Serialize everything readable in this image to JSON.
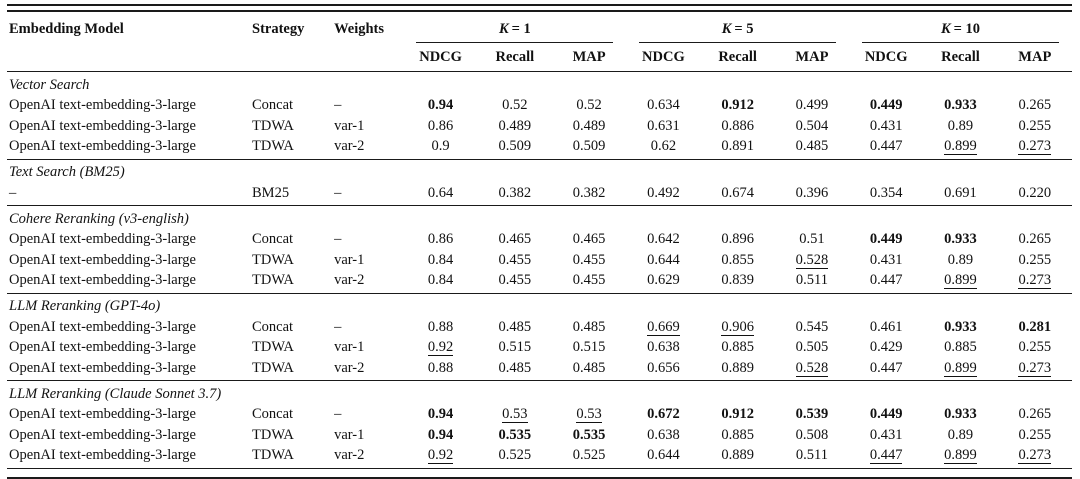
{
  "table": {
    "header": {
      "embedding_model": "Embedding Model",
      "strategy": "Strategy",
      "weights": "Weights",
      "k_groups": [
        {
          "var": "K",
          "rest": "= 1"
        },
        {
          "var": "K",
          "rest": "= 5"
        },
        {
          "var": "K",
          "rest": "= 10"
        }
      ],
      "metrics": [
        "NDCG",
        "Recall",
        "MAP"
      ]
    },
    "sections": [
      {
        "title": "Vector Search",
        "rows": [
          {
            "model": "OpenAI text-embedding-3-large",
            "strategy": "Concat",
            "weights": "–",
            "cells": [
              {
                "v": "0.94",
                "s": "b"
              },
              {
                "v": "0.52",
                "s": ""
              },
              {
                "v": "0.52",
                "s": ""
              },
              {
                "v": "0.634",
                "s": ""
              },
              {
                "v": "0.912",
                "s": "b"
              },
              {
                "v": "0.499",
                "s": ""
              },
              {
                "v": "0.449",
                "s": "b"
              },
              {
                "v": "0.933",
                "s": "b"
              },
              {
                "v": "0.265",
                "s": ""
              }
            ]
          },
          {
            "model": "OpenAI text-embedding-3-large",
            "strategy": "TDWA",
            "weights": "var-1",
            "cells": [
              {
                "v": "0.86",
                "s": ""
              },
              {
                "v": "0.489",
                "s": ""
              },
              {
                "v": "0.489",
                "s": ""
              },
              {
                "v": "0.631",
                "s": ""
              },
              {
                "v": "0.886",
                "s": ""
              },
              {
                "v": "0.504",
                "s": ""
              },
              {
                "v": "0.431",
                "s": ""
              },
              {
                "v": "0.89",
                "s": ""
              },
              {
                "v": "0.255",
                "s": ""
              }
            ]
          },
          {
            "model": "OpenAI text-embedding-3-large",
            "strategy": "TDWA",
            "weights": "var-2",
            "cells": [
              {
                "v": "0.9",
                "s": ""
              },
              {
                "v": "0.509",
                "s": ""
              },
              {
                "v": "0.509",
                "s": ""
              },
              {
                "v": "0.62",
                "s": ""
              },
              {
                "v": "0.891",
                "s": ""
              },
              {
                "v": "0.485",
                "s": ""
              },
              {
                "v": "0.447",
                "s": ""
              },
              {
                "v": "0.899",
                "s": "u"
              },
              {
                "v": "0.273",
                "s": "u"
              }
            ]
          }
        ]
      },
      {
        "title": "Text Search (BM25)",
        "rows": [
          {
            "model": "–",
            "strategy": "BM25",
            "weights": "–",
            "cells": [
              {
                "v": "0.64",
                "s": ""
              },
              {
                "v": "0.382",
                "s": ""
              },
              {
                "v": "0.382",
                "s": ""
              },
              {
                "v": "0.492",
                "s": ""
              },
              {
                "v": "0.674",
                "s": ""
              },
              {
                "v": "0.396",
                "s": ""
              },
              {
                "v": "0.354",
                "s": ""
              },
              {
                "v": "0.691",
                "s": ""
              },
              {
                "v": "0.220",
                "s": ""
              }
            ]
          }
        ]
      },
      {
        "title": "Cohere Reranking (v3-english)",
        "rows": [
          {
            "model": "OpenAI text-embedding-3-large",
            "strategy": "Concat",
            "weights": "–",
            "cells": [
              {
                "v": "0.86",
                "s": ""
              },
              {
                "v": "0.465",
                "s": ""
              },
              {
                "v": "0.465",
                "s": ""
              },
              {
                "v": "0.642",
                "s": ""
              },
              {
                "v": "0.896",
                "s": ""
              },
              {
                "v": "0.51",
                "s": ""
              },
              {
                "v": "0.449",
                "s": "b"
              },
              {
                "v": "0.933",
                "s": "b"
              },
              {
                "v": "0.265",
                "s": ""
              }
            ]
          },
          {
            "model": "OpenAI text-embedding-3-large",
            "strategy": "TDWA",
            "weights": "var-1",
            "cells": [
              {
                "v": "0.84",
                "s": ""
              },
              {
                "v": "0.455",
                "s": ""
              },
              {
                "v": "0.455",
                "s": ""
              },
              {
                "v": "0.644",
                "s": ""
              },
              {
                "v": "0.855",
                "s": ""
              },
              {
                "v": "0.528",
                "s": "u"
              },
              {
                "v": "0.431",
                "s": ""
              },
              {
                "v": "0.89",
                "s": ""
              },
              {
                "v": "0.255",
                "s": ""
              }
            ]
          },
          {
            "model": "OpenAI text-embedding-3-large",
            "strategy": "TDWA",
            "weights": "var-2",
            "cells": [
              {
                "v": "0.84",
                "s": ""
              },
              {
                "v": "0.455",
                "s": ""
              },
              {
                "v": "0.455",
                "s": ""
              },
              {
                "v": "0.629",
                "s": ""
              },
              {
                "v": "0.839",
                "s": ""
              },
              {
                "v": "0.511",
                "s": ""
              },
              {
                "v": "0.447",
                "s": ""
              },
              {
                "v": "0.899",
                "s": "u"
              },
              {
                "v": "0.273",
                "s": "u"
              }
            ]
          }
        ]
      },
      {
        "title": "LLM Reranking (GPT-4o)",
        "rows": [
          {
            "model": "OpenAI text-embedding-3-large",
            "strategy": "Concat",
            "weights": "–",
            "cells": [
              {
                "v": "0.88",
                "s": ""
              },
              {
                "v": "0.485",
                "s": ""
              },
              {
                "v": "0.485",
                "s": ""
              },
              {
                "v": "0.669",
                "s": "u"
              },
              {
                "v": "0.906",
                "s": "u"
              },
              {
                "v": "0.545",
                "s": ""
              },
              {
                "v": "0.461",
                "s": ""
              },
              {
                "v": "0.933",
                "s": "b"
              },
              {
                "v": "0.281",
                "s": "b"
              }
            ]
          },
          {
            "model": "OpenAI text-embedding-3-large",
            "strategy": "TDWA",
            "weights": "var-1",
            "cells": [
              {
                "v": "0.92",
                "s": "u"
              },
              {
                "v": "0.515",
                "s": ""
              },
              {
                "v": "0.515",
                "s": ""
              },
              {
                "v": "0.638",
                "s": ""
              },
              {
                "v": "0.885",
                "s": ""
              },
              {
                "v": "0.505",
                "s": ""
              },
              {
                "v": "0.429",
                "s": ""
              },
              {
                "v": "0.885",
                "s": ""
              },
              {
                "v": "0.255",
                "s": ""
              }
            ]
          },
          {
            "model": "OpenAI text-embedding-3-large",
            "strategy": "TDWA",
            "weights": "var-2",
            "cells": [
              {
                "v": "0.88",
                "s": ""
              },
              {
                "v": "0.485",
                "s": ""
              },
              {
                "v": "0.485",
                "s": ""
              },
              {
                "v": "0.656",
                "s": ""
              },
              {
                "v": "0.889",
                "s": ""
              },
              {
                "v": "0.528",
                "s": "u"
              },
              {
                "v": "0.447",
                "s": ""
              },
              {
                "v": "0.899",
                "s": "u"
              },
              {
                "v": "0.273",
                "s": "u"
              }
            ]
          }
        ]
      },
      {
        "title": "LLM Reranking (Claude Sonnet 3.7)",
        "rows": [
          {
            "model": "OpenAI text-embedding-3-large",
            "strategy": "Concat",
            "weights": "–",
            "cells": [
              {
                "v": "0.94",
                "s": "b"
              },
              {
                "v": "0.53",
                "s": "u"
              },
              {
                "v": "0.53",
                "s": "u"
              },
              {
                "v": "0.672",
                "s": "b"
              },
              {
                "v": "0.912",
                "s": "b"
              },
              {
                "v": "0.539",
                "s": "b"
              },
              {
                "v": "0.449",
                "s": "b"
              },
              {
                "v": "0.933",
                "s": "b"
              },
              {
                "v": "0.265",
                "s": ""
              }
            ]
          },
          {
            "model": "OpenAI text-embedding-3-large",
            "strategy": "TDWA",
            "weights": "var-1",
            "cells": [
              {
                "v": "0.94",
                "s": "b"
              },
              {
                "v": "0.535",
                "s": "b"
              },
              {
                "v": "0.535",
                "s": "b"
              },
              {
                "v": "0.638",
                "s": ""
              },
              {
                "v": "0.885",
                "s": ""
              },
              {
                "v": "0.508",
                "s": ""
              },
              {
                "v": "0.431",
                "s": ""
              },
              {
                "v": "0.89",
                "s": ""
              },
              {
                "v": "0.255",
                "s": ""
              }
            ]
          },
          {
            "model": "OpenAI text-embedding-3-large",
            "strategy": "TDWA",
            "weights": "var-2",
            "cells": [
              {
                "v": "0.92",
                "s": "u"
              },
              {
                "v": "0.525",
                "s": ""
              },
              {
                "v": "0.525",
                "s": ""
              },
              {
                "v": "0.644",
                "s": ""
              },
              {
                "v": "0.889",
                "s": ""
              },
              {
                "v": "0.511",
                "s": ""
              },
              {
                "v": "0.447",
                "s": "u"
              },
              {
                "v": "0.899",
                "s": "u"
              },
              {
                "v": "0.273",
                "s": "u"
              }
            ]
          }
        ]
      }
    ]
  },
  "rules_color": "#1a1a1a"
}
